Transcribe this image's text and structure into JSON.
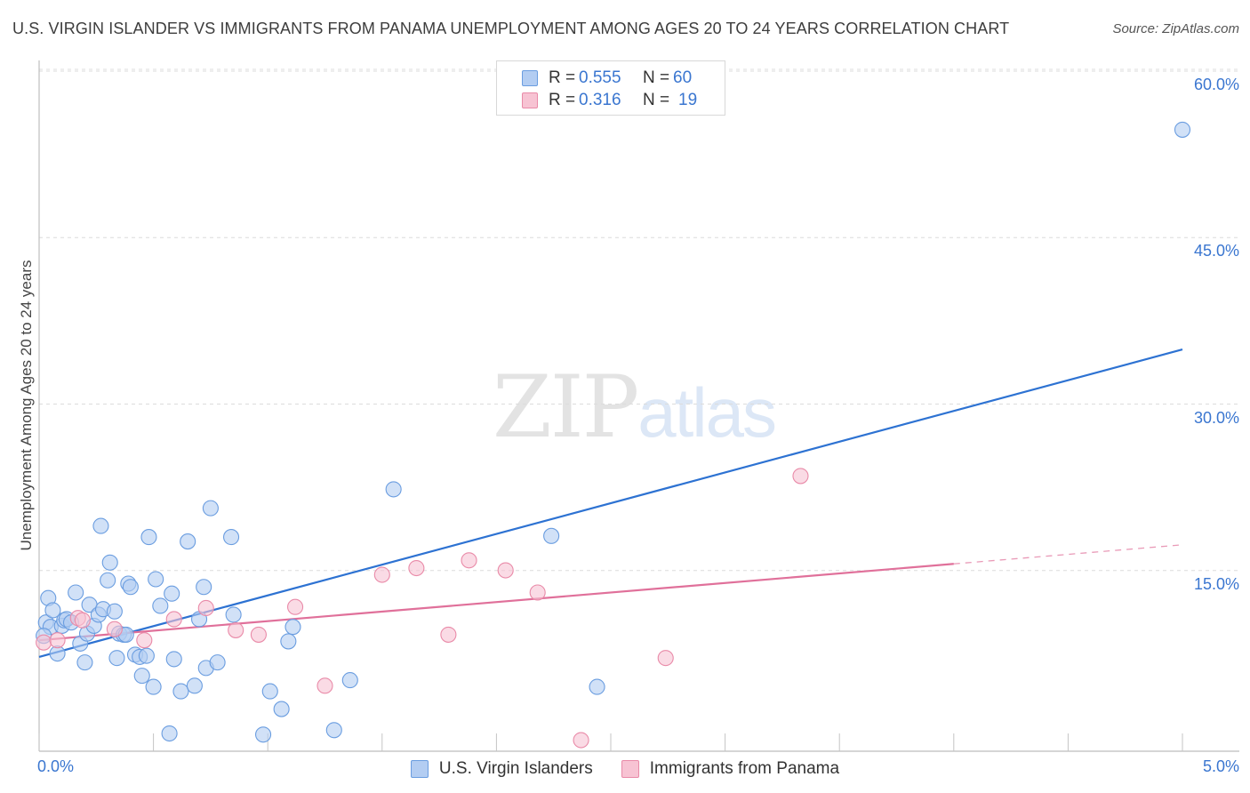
{
  "title": "U.S. VIRGIN ISLANDER VS IMMIGRANTS FROM PANAMA UNEMPLOYMENT AMONG AGES 20 TO 24 YEARS CORRELATION CHART",
  "source": "Source: ZipAtlas.com",
  "watermark": {
    "part1": "ZIP",
    "part2": "atlas"
  },
  "legend_top": [
    {
      "r_label": "R =",
      "r_value": "0.555",
      "n_label": "N =",
      "n_value": "60"
    },
    {
      "r_label": "R =",
      "r_value": "0.316",
      "n_label": "N =",
      "n_value": "19"
    }
  ],
  "colors": {
    "blue_fill": "#b3cdf2",
    "blue_stroke": "#6a9de0",
    "blue_line": "#2d72d2",
    "pink_fill": "#f7c3d3",
    "pink_stroke": "#e98aa8",
    "pink_line": "#e0709a",
    "tick_text": "#3a76d0",
    "grid": "#dcdcdc"
  },
  "chart_data": {
    "type": "scatter",
    "title": "U.S. VIRGIN ISLANDER VS IMMIGRANTS FROM PANAMA UNEMPLOYMENT AMONG AGES 20 TO 24 YEARS CORRELATION CHART",
    "xlabel": "",
    "ylabel": "Unemployment Among Ages 20 to 24 years",
    "xlim": [
      0,
      5
    ],
    "ylim": [
      0,
      60
    ],
    "x_ticks": [
      "0.0%",
      "5.0%"
    ],
    "y_ticks": [
      {
        "value": 15,
        "label": "15.0%"
      },
      {
        "value": 30,
        "label": "30.0%"
      },
      {
        "value": 45,
        "label": "45.0%"
      },
      {
        "value": 60,
        "label": "60.0%"
      }
    ],
    "grid": true,
    "legend_position": "bottom",
    "series": [
      {
        "name": "U.S. Virgin Islanders",
        "color": "#b3cdf2",
        "trend": {
          "x": [
            0.0,
            5.0
          ],
          "y": [
            8.5,
            36.2
          ],
          "dashed_from": null
        },
        "points": [
          [
            0.03,
            11.6
          ],
          [
            0.05,
            11.2
          ],
          [
            0.04,
            13.8
          ],
          [
            0.06,
            12.7
          ],
          [
            0.08,
            8.8
          ],
          [
            0.1,
            11.3
          ],
          [
            0.11,
            11.8
          ],
          [
            0.12,
            11.9
          ],
          [
            0.14,
            11.6
          ],
          [
            0.16,
            14.3
          ],
          [
            0.18,
            9.7
          ],
          [
            0.2,
            8.0
          ],
          [
            0.21,
            10.6
          ],
          [
            0.22,
            13.2
          ],
          [
            0.24,
            11.3
          ],
          [
            0.26,
            12.3
          ],
          [
            0.27,
            20.3
          ],
          [
            0.28,
            12.8
          ],
          [
            0.3,
            15.4
          ],
          [
            0.31,
            17.0
          ],
          [
            0.33,
            12.6
          ],
          [
            0.34,
            8.4
          ],
          [
            0.35,
            10.6
          ],
          [
            0.37,
            10.5
          ],
          [
            0.39,
            15.1
          ],
          [
            0.4,
            14.8
          ],
          [
            0.42,
            8.7
          ],
          [
            0.44,
            8.5
          ],
          [
            0.45,
            6.8
          ],
          [
            0.47,
            8.6
          ],
          [
            0.48,
            19.3
          ],
          [
            0.5,
            5.8
          ],
          [
            0.51,
            15.5
          ],
          [
            0.53,
            13.1
          ],
          [
            0.57,
            1.6
          ],
          [
            0.58,
            14.2
          ],
          [
            0.59,
            8.3
          ],
          [
            0.62,
            5.4
          ],
          [
            0.65,
            18.9
          ],
          [
            0.68,
            5.9
          ],
          [
            0.7,
            11.9
          ],
          [
            0.72,
            14.8
          ],
          [
            0.73,
            7.5
          ],
          [
            0.75,
            21.9
          ],
          [
            0.78,
            8.0
          ],
          [
            0.84,
            19.3
          ],
          [
            0.85,
            12.3
          ],
          [
            0.98,
            1.5
          ],
          [
            1.01,
            5.4
          ],
          [
            1.06,
            3.8
          ],
          [
            1.09,
            9.9
          ],
          [
            1.11,
            11.2
          ],
          [
            1.29,
            1.9
          ],
          [
            1.36,
            6.4
          ],
          [
            1.55,
            23.6
          ],
          [
            2.24,
            19.4
          ],
          [
            2.44,
            5.8
          ],
          [
            5.0,
            56.0
          ],
          [
            0.02,
            10.4
          ],
          [
            0.38,
            10.5
          ]
        ]
      },
      {
        "name": "Immigrants from Panama",
        "color": "#f7c3d3",
        "trend": {
          "x": [
            0.0,
            5.0
          ],
          "y": [
            10.0,
            18.6
          ],
          "dashed_from": 4.0
        },
        "points": [
          [
            0.02,
            9.8
          ],
          [
            0.08,
            10.0
          ],
          [
            0.17,
            12.0
          ],
          [
            0.19,
            11.8
          ],
          [
            0.33,
            11.0
          ],
          [
            0.46,
            10.0
          ],
          [
            0.59,
            11.9
          ],
          [
            0.73,
            12.9
          ],
          [
            0.86,
            10.9
          ],
          [
            0.96,
            10.5
          ],
          [
            1.12,
            13.0
          ],
          [
            1.25,
            5.9
          ],
          [
            1.5,
            15.9
          ],
          [
            1.65,
            16.5
          ],
          [
            1.79,
            10.5
          ],
          [
            1.88,
            17.2
          ],
          [
            2.04,
            16.3
          ],
          [
            2.18,
            14.3
          ],
          [
            2.37,
            1.0
          ]
        ]
      },
      {
        "name": "",
        "color": "#f7c3d3",
        "trend": null,
        "points": [
          [
            2.74,
            8.4
          ],
          [
            3.33,
            24.8
          ]
        ]
      }
    ]
  }
}
